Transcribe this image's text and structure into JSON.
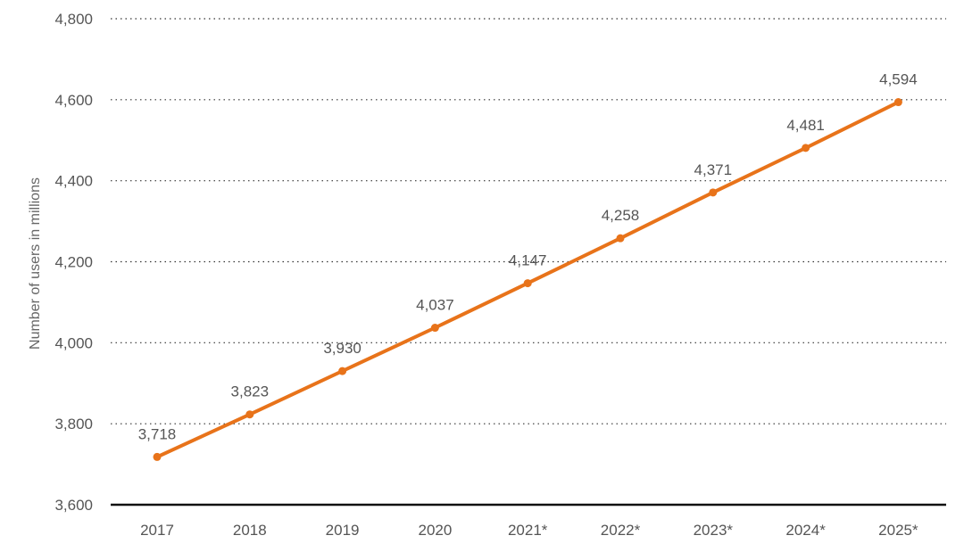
{
  "chart_data": {
    "type": "line",
    "categories": [
      "2017",
      "2018",
      "2019",
      "2020",
      "2021*",
      "2022*",
      "2023*",
      "2024*",
      "2025*"
    ],
    "series": [
      {
        "values": [
          3718,
          3823,
          3930,
          4037,
          4147,
          4258,
          4371,
          4481,
          4594
        ]
      }
    ],
    "data_labels": [
      "3,718",
      "3,823",
      "3,930",
      "4,037",
      "4,147",
      "4,258",
      "4,371",
      "4,481",
      "4,594"
    ],
    "ylabel": "Number of users in millions",
    "xlabel": "",
    "ylim": [
      3600,
      4800
    ],
    "yticks": [
      3600,
      3800,
      4000,
      4200,
      4400,
      4600,
      4800
    ],
    "ytick_labels": [
      "3,600",
      "3,800",
      "4,000",
      "4,200",
      "4,400",
      "4,600",
      "4,800"
    ],
    "grid": true,
    "line_color": "#E8731A",
    "legend": false
  }
}
